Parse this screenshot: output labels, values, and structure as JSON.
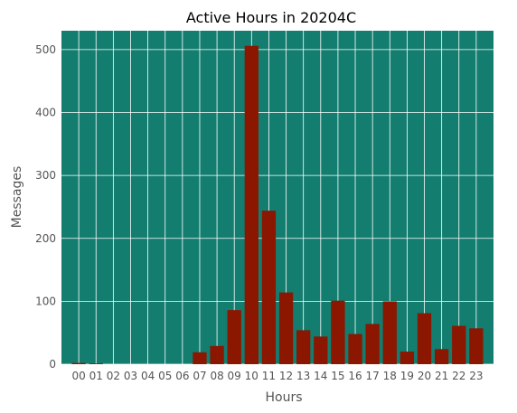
{
  "chart_data": {
    "type": "bar",
    "title": "Active Hours in 20204C",
    "xlabel": "Hours",
    "ylabel": "Messages",
    "categories": [
      "00",
      "01",
      "02",
      "03",
      "04",
      "05",
      "06",
      "07",
      "08",
      "09",
      "10",
      "11",
      "12",
      "13",
      "14",
      "15",
      "16",
      "17",
      "18",
      "19",
      "20",
      "21",
      "22",
      "23"
    ],
    "values": [
      2,
      1,
      0,
      0,
      0,
      0,
      0,
      19,
      29,
      86,
      506,
      244,
      114,
      54,
      44,
      101,
      48,
      64,
      100,
      20,
      81,
      24,
      61,
      57
    ],
    "ylim": [
      0,
      530
    ],
    "yticks": [
      0,
      100,
      200,
      300,
      400,
      500
    ],
    "grid": true,
    "colors": {
      "background": "#137D6F",
      "bar": "#8B1700",
      "grid": "#ffffff",
      "text": "#555555"
    }
  }
}
